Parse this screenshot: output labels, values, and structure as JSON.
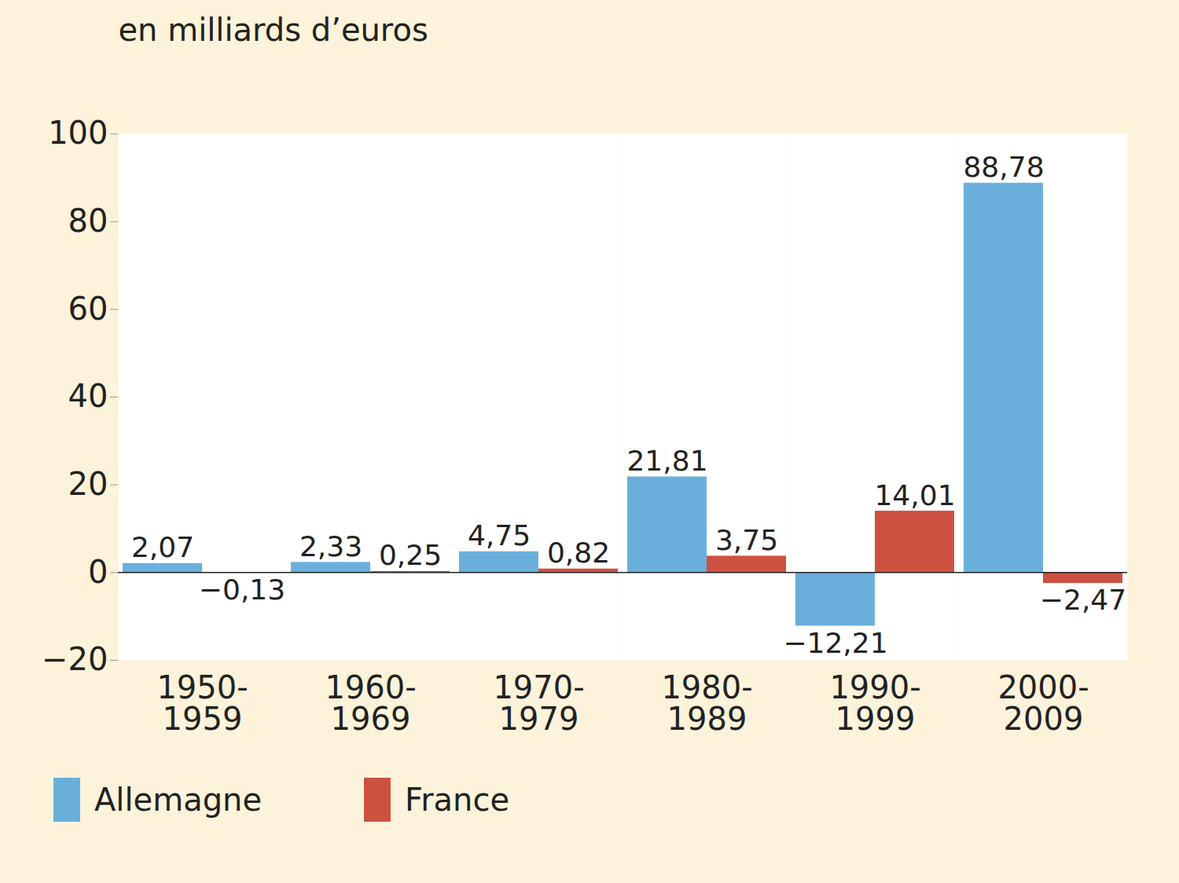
{
  "chart_data": {
    "type": "bar",
    "y_label": "en milliards d’euros",
    "categories": [
      "1950-1959",
      "1960-1969",
      "1970-1979",
      "1980-1989",
      "1990-1999",
      "2000-2009"
    ],
    "series": [
      {
        "name": "Allemagne",
        "color": "#6aafdc",
        "values": [
          2.07,
          2.33,
          4.75,
          21.81,
          -12.21,
          88.78
        ],
        "value_labels": [
          "2,07",
          "2,33",
          "4,75",
          "21,81",
          "−12,21",
          "88,78"
        ]
      },
      {
        "name": "France",
        "color": "#cd5140",
        "values": [
          -0.13,
          0.25,
          0.82,
          3.75,
          14.01,
          -2.47
        ],
        "value_labels": [
          "−0,13",
          "0,25",
          "0,82",
          "3,75",
          "14,01",
          "−2,47"
        ]
      }
    ],
    "ylim": [
      -20,
      100
    ],
    "yticks": [
      -20,
      0,
      20,
      40,
      60,
      80,
      100
    ],
    "grid": true,
    "data_labels": true,
    "legend": "bottom"
  }
}
